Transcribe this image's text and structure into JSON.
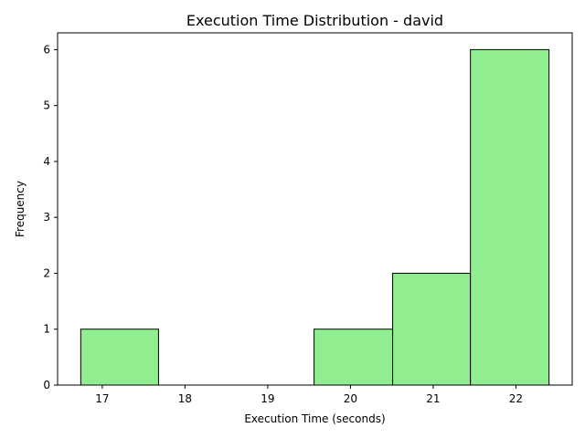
{
  "chart_data": {
    "type": "bar",
    "title": "Execution Time Distribution - david",
    "xlabel": "Execution Time (seconds)",
    "ylabel": "Frequency",
    "xlim": [
      16.46,
      22.68
    ],
    "ylim": [
      0,
      6.3
    ],
    "xticks": [
      "17",
      "18",
      "19",
      "20",
      "21",
      "22"
    ],
    "yticks": [
      "0",
      "1",
      "2",
      "3",
      "4",
      "5",
      "6"
    ],
    "bins": [
      {
        "x0": 16.74,
        "x1": 17.68,
        "count": 1
      },
      {
        "x0": 17.68,
        "x1": 18.62,
        "count": 0
      },
      {
        "x0": 18.62,
        "x1": 19.56,
        "count": 0
      },
      {
        "x0": 19.56,
        "x1": 20.51,
        "count": 1
      },
      {
        "x0": 20.51,
        "x1": 21.45,
        "count": 2
      },
      {
        "x0": 21.45,
        "x1": 22.4,
        "count": 6
      }
    ],
    "bar_color": "#90ee90",
    "edge_color": "#000000",
    "grid": false,
    "legend": "none"
  }
}
